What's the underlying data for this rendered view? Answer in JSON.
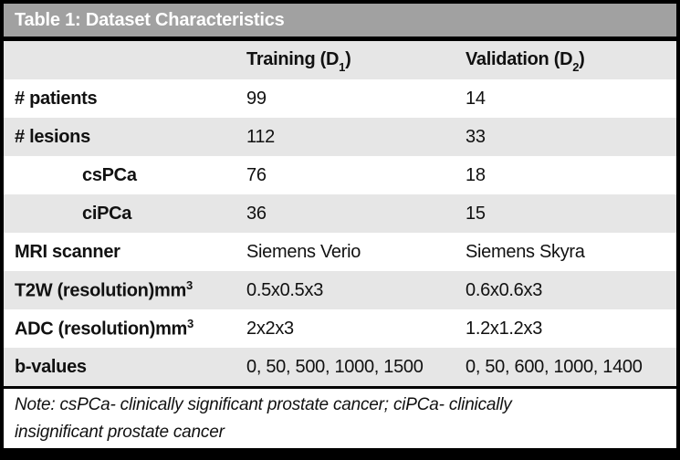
{
  "title_bar": {
    "title": "Table 1: Dataset Characteristics"
  },
  "header": {
    "col2": {
      "pre": "Training (D",
      "sub": "1",
      "post": ")"
    },
    "col3": {
      "pre": "Validation (D",
      "sub": "2",
      "post": ")"
    }
  },
  "rows": [
    {
      "label": "# patients",
      "training": "99",
      "validation": "14"
    },
    {
      "label": "# lesions",
      "training": "112",
      "validation": "33"
    },
    {
      "label": "csPCa",
      "training": "76",
      "validation": "18"
    },
    {
      "label": "ciPCa",
      "training": "36",
      "validation": "15"
    },
    {
      "label": "MRI scanner",
      "training": "Siemens Verio",
      "validation": "Siemens Skyra"
    },
    {
      "label": "T2W (resolution)mm",
      "label_sup": "3",
      "training": "0.5x0.5x3",
      "validation": "0.6x0.6x3"
    },
    {
      "label": "ADC (resolution)mm",
      "label_sup": "3",
      "training": "2x2x3",
      "validation": "1.2x1.2x3"
    },
    {
      "label": "b-values",
      "training": "0, 50, 500, 1000, 1500",
      "validation": "0, 50, 600, 1000, 1400"
    }
  ],
  "note": {
    "line1": "Note: csPCa- clinically significant prostate cancer; ciPCa- clinically",
    "line2": "insignificant prostate cancer"
  },
  "colors": {
    "title_bar_bg": "#a1a1a1",
    "alt_row_bg": "#e6e6e6",
    "frame": "#000000",
    "title_text": "#ffffff"
  }
}
